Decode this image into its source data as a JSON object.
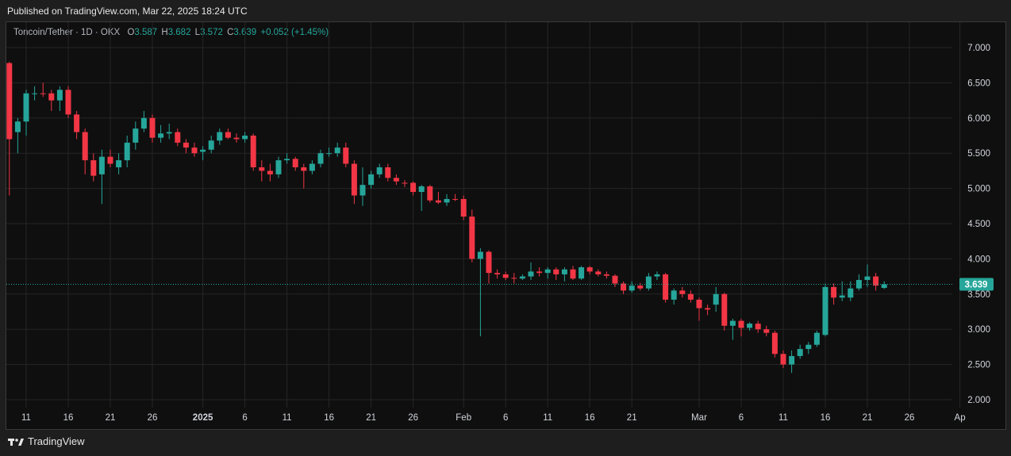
{
  "header": {
    "published": "Published on TradingView.com, Mar 22, 2025 18:24 UTC"
  },
  "legend": {
    "symbol": "Toncoin/Tether · 1D · OKX",
    "o_label": "O",
    "o_value": "3.587",
    "h_label": "H",
    "h_value": "3.682",
    "l_label": "L",
    "l_value": "3.572",
    "c_label": "C",
    "c_value": "3.639",
    "change": "+0.052 (+1.45%)"
  },
  "footer": {
    "brand": "TradingView"
  },
  "colors": {
    "up": "#26a69a",
    "down": "#f23645",
    "grid": "#262626",
    "bg": "#0f0f0f",
    "price_line": "#26a69a"
  },
  "chart_data": {
    "type": "candlestick",
    "title": "Toncoin/Tether · 1D · OKX",
    "ylim": [
      1.85,
      7.3
    ],
    "y_ticks": [
      "2.000",
      "2.500",
      "3.000",
      "3.500",
      "4.000",
      "4.500",
      "5.000",
      "5.500",
      "6.000",
      "6.500",
      "7.000"
    ],
    "x_ticks": [
      {
        "label": "11",
        "date": "2024-12-11"
      },
      {
        "label": "16",
        "date": "2024-12-16"
      },
      {
        "label": "21",
        "date": "2024-12-21"
      },
      {
        "label": "26",
        "date": "2024-12-26"
      },
      {
        "label": "2025",
        "date": "2025-01-01"
      },
      {
        "label": "6",
        "date": "2025-01-06"
      },
      {
        "label": "11",
        "date": "2025-01-11"
      },
      {
        "label": "16",
        "date": "2025-01-16"
      },
      {
        "label": "21",
        "date": "2025-01-21"
      },
      {
        "label": "26",
        "date": "2025-01-26"
      },
      {
        "label": "Feb",
        "date": "2025-02-01"
      },
      {
        "label": "6",
        "date": "2025-02-06"
      },
      {
        "label": "11",
        "date": "2025-02-11"
      },
      {
        "label": "16",
        "date": "2025-02-16"
      },
      {
        "label": "21",
        "date": "2025-02-21"
      },
      {
        "label": "Mar",
        "date": "2025-03-01"
      },
      {
        "label": "6",
        "date": "2025-03-06"
      },
      {
        "label": "11",
        "date": "2025-03-11"
      },
      {
        "label": "16",
        "date": "2025-03-16"
      },
      {
        "label": "21",
        "date": "2025-03-21"
      },
      {
        "label": "26",
        "date": "2025-03-26"
      },
      {
        "label": "Ap",
        "date": "2025-04-01"
      }
    ],
    "last_price": "3.639",
    "candles": [
      [
        "2024-12-09",
        6.78,
        6.8,
        4.9,
        5.7
      ],
      [
        "2024-12-10",
        5.8,
        6.0,
        5.5,
        5.95
      ],
      [
        "2024-12-11",
        5.95,
        6.4,
        5.75,
        6.35
      ],
      [
        "2024-12-12",
        6.35,
        6.45,
        6.25,
        6.35
      ],
      [
        "2024-12-13",
        6.35,
        6.5,
        6.3,
        6.34
      ],
      [
        "2024-12-14",
        6.35,
        6.4,
        6.1,
        6.25
      ],
      [
        "2024-12-15",
        6.25,
        6.45,
        6.1,
        6.4
      ],
      [
        "2024-12-16",
        6.4,
        6.45,
        6.0,
        6.05
      ],
      [
        "2024-12-17",
        6.05,
        6.1,
        5.7,
        5.8
      ],
      [
        "2024-12-18",
        5.8,
        5.85,
        5.2,
        5.4
      ],
      [
        "2024-12-19",
        5.4,
        5.5,
        5.1,
        5.18
      ],
      [
        "2024-12-20",
        5.2,
        5.55,
        4.78,
        5.45
      ],
      [
        "2024-12-21",
        5.45,
        5.55,
        5.3,
        5.35
      ],
      [
        "2024-12-22",
        5.3,
        5.5,
        5.2,
        5.4
      ],
      [
        "2024-12-23",
        5.4,
        5.75,
        5.3,
        5.65
      ],
      [
        "2024-12-24",
        5.65,
        5.95,
        5.55,
        5.85
      ],
      [
        "2024-12-25",
        5.85,
        6.1,
        5.8,
        6.0
      ],
      [
        "2024-12-26",
        6.0,
        6.05,
        5.65,
        5.72
      ],
      [
        "2024-12-27",
        5.72,
        5.9,
        5.65,
        5.78
      ],
      [
        "2024-12-28",
        5.78,
        5.92,
        5.7,
        5.8
      ],
      [
        "2024-12-29",
        5.8,
        5.85,
        5.6,
        5.65
      ],
      [
        "2024-12-30",
        5.65,
        5.7,
        5.5,
        5.58
      ],
      [
        "2024-12-31",
        5.58,
        5.65,
        5.45,
        5.5
      ],
      [
        "2025-01-01",
        5.52,
        5.6,
        5.4,
        5.55
      ],
      [
        "2025-01-02",
        5.55,
        5.75,
        5.5,
        5.68
      ],
      [
        "2025-01-03",
        5.68,
        5.85,
        5.62,
        5.8
      ],
      [
        "2025-01-04",
        5.8,
        5.85,
        5.7,
        5.72
      ],
      [
        "2025-01-05",
        5.72,
        5.78,
        5.65,
        5.7
      ],
      [
        "2025-01-06",
        5.7,
        5.8,
        5.65,
        5.75
      ],
      [
        "2025-01-07",
        5.75,
        5.78,
        5.25,
        5.3
      ],
      [
        "2025-01-08",
        5.3,
        5.4,
        5.1,
        5.25
      ],
      [
        "2025-01-09",
        5.25,
        5.35,
        5.1,
        5.2
      ],
      [
        "2025-01-10",
        5.2,
        5.45,
        5.15,
        5.4
      ],
      [
        "2025-01-11",
        5.4,
        5.5,
        5.35,
        5.42
      ],
      [
        "2025-01-12",
        5.42,
        5.45,
        5.25,
        5.3
      ],
      [
        "2025-01-13",
        5.3,
        5.35,
        5.0,
        5.25
      ],
      [
        "2025-01-14",
        5.25,
        5.4,
        5.2,
        5.35
      ],
      [
        "2025-01-15",
        5.35,
        5.55,
        5.3,
        5.5
      ],
      [
        "2025-01-16",
        5.5,
        5.58,
        5.45,
        5.5
      ],
      [
        "2025-01-17",
        5.5,
        5.65,
        5.45,
        5.58
      ],
      [
        "2025-01-18",
        5.58,
        5.65,
        5.3,
        5.35
      ],
      [
        "2025-01-19",
        5.35,
        5.4,
        4.78,
        4.9
      ],
      [
        "2025-01-20",
        4.9,
        5.3,
        4.75,
        5.05
      ],
      [
        "2025-01-21",
        5.05,
        5.25,
        5.0,
        5.2
      ],
      [
        "2025-01-22",
        5.2,
        5.35,
        5.15,
        5.3
      ],
      [
        "2025-01-23",
        5.3,
        5.35,
        5.1,
        5.15
      ],
      [
        "2025-01-24",
        5.15,
        5.2,
        5.05,
        5.1
      ],
      [
        "2025-01-25",
        5.08,
        5.12,
        5.02,
        5.07
      ],
      [
        "2025-01-26",
        5.08,
        5.1,
        4.9,
        4.95
      ],
      [
        "2025-01-27",
        4.95,
        5.05,
        4.68,
        5.03
      ],
      [
        "2025-01-28",
        5.03,
        5.05,
        4.8,
        4.83
      ],
      [
        "2025-01-29",
        4.83,
        4.95,
        4.78,
        4.8
      ],
      [
        "2025-01-30",
        4.8,
        4.92,
        4.75,
        4.85
      ],
      [
        "2025-01-31",
        4.85,
        4.92,
        4.82,
        4.84
      ],
      [
        "2025-02-01",
        4.85,
        4.9,
        4.55,
        4.6
      ],
      [
        "2025-02-02",
        4.6,
        4.7,
        3.95,
        4.0
      ],
      [
        "2025-02-03",
        4.0,
        4.15,
        2.9,
        4.1
      ],
      [
        "2025-02-04",
        4.1,
        4.12,
        3.65,
        3.8
      ],
      [
        "2025-02-05",
        3.8,
        3.85,
        3.72,
        3.78
      ],
      [
        "2025-02-06",
        3.78,
        3.82,
        3.7,
        3.73
      ],
      [
        "2025-02-07",
        3.73,
        3.8,
        3.65,
        3.72
      ],
      [
        "2025-02-08",
        3.72,
        3.78,
        3.7,
        3.75
      ],
      [
        "2025-02-09",
        3.75,
        3.95,
        3.7,
        3.82
      ],
      [
        "2025-02-10",
        3.82,
        3.88,
        3.75,
        3.8
      ],
      [
        "2025-02-11",
        3.8,
        3.88,
        3.72,
        3.85
      ],
      [
        "2025-02-12",
        3.85,
        3.88,
        3.7,
        3.78
      ],
      [
        "2025-02-13",
        3.78,
        3.88,
        3.68,
        3.85
      ],
      [
        "2025-02-14",
        3.85,
        3.9,
        3.7,
        3.72
      ],
      [
        "2025-02-15",
        3.72,
        3.9,
        3.7,
        3.88
      ],
      [
        "2025-02-16",
        3.88,
        3.9,
        3.78,
        3.82
      ],
      [
        "2025-02-17",
        3.82,
        3.85,
        3.75,
        3.78
      ],
      [
        "2025-02-18",
        3.78,
        3.82,
        3.72,
        3.76
      ],
      [
        "2025-02-19",
        3.76,
        3.78,
        3.6,
        3.65
      ],
      [
        "2025-02-20",
        3.65,
        3.68,
        3.5,
        3.55
      ],
      [
        "2025-02-21",
        3.55,
        3.68,
        3.52,
        3.62
      ],
      [
        "2025-02-22",
        3.62,
        3.66,
        3.55,
        3.58
      ],
      [
        "2025-02-23",
        3.58,
        3.8,
        3.55,
        3.75
      ],
      [
        "2025-02-24",
        3.75,
        3.82,
        3.7,
        3.78
      ],
      [
        "2025-02-25",
        3.78,
        3.8,
        3.38,
        3.42
      ],
      [
        "2025-02-26",
        3.42,
        3.58,
        3.35,
        3.55
      ],
      [
        "2025-02-27",
        3.55,
        3.6,
        3.45,
        3.5
      ],
      [
        "2025-02-28",
        3.5,
        3.55,
        3.38,
        3.42
      ],
      [
        "2025-03-01",
        3.42,
        3.45,
        3.12,
        3.3
      ],
      [
        "2025-03-02",
        3.3,
        3.35,
        3.2,
        3.28
      ],
      [
        "2025-03-03",
        3.35,
        3.6,
        3.25,
        3.5
      ],
      [
        "2025-03-04",
        3.5,
        3.52,
        2.98,
        3.05
      ],
      [
        "2025-03-05",
        3.05,
        3.15,
        2.85,
        3.12
      ],
      [
        "2025-03-06",
        3.12,
        3.15,
        2.9,
        3.02
      ],
      [
        "2025-03-07",
        3.02,
        3.1,
        2.98,
        3.08
      ],
      [
        "2025-03-08",
        3.08,
        3.12,
        2.95,
        3.0
      ],
      [
        "2025-03-09",
        3.0,
        3.05,
        2.9,
        2.95
      ],
      [
        "2025-03-10",
        2.95,
        2.98,
        2.6,
        2.65
      ],
      [
        "2025-03-11",
        2.65,
        2.7,
        2.45,
        2.5
      ],
      [
        "2025-03-12",
        2.5,
        2.7,
        2.38,
        2.62
      ],
      [
        "2025-03-13",
        2.62,
        2.78,
        2.58,
        2.72
      ],
      [
        "2025-03-14",
        2.72,
        2.82,
        2.65,
        2.78
      ],
      [
        "2025-03-15",
        2.78,
        2.98,
        2.75,
        2.95
      ],
      [
        "2025-03-16",
        2.92,
        3.65,
        2.9,
        3.6
      ],
      [
        "2025-03-17",
        3.6,
        3.65,
        3.35,
        3.45
      ],
      [
        "2025-03-18",
        3.45,
        3.68,
        3.4,
        3.48
      ],
      [
        "2025-03-19",
        3.45,
        3.68,
        3.4,
        3.58
      ],
      [
        "2025-03-20",
        3.58,
        3.78,
        3.55,
        3.7
      ],
      [
        "2025-03-21",
        3.7,
        3.92,
        3.6,
        3.75
      ],
      [
        "2025-03-22",
        3.75,
        3.8,
        3.55,
        3.62
      ],
      [
        "2025-03-23",
        3.587,
        3.682,
        3.572,
        3.639
      ]
    ]
  }
}
